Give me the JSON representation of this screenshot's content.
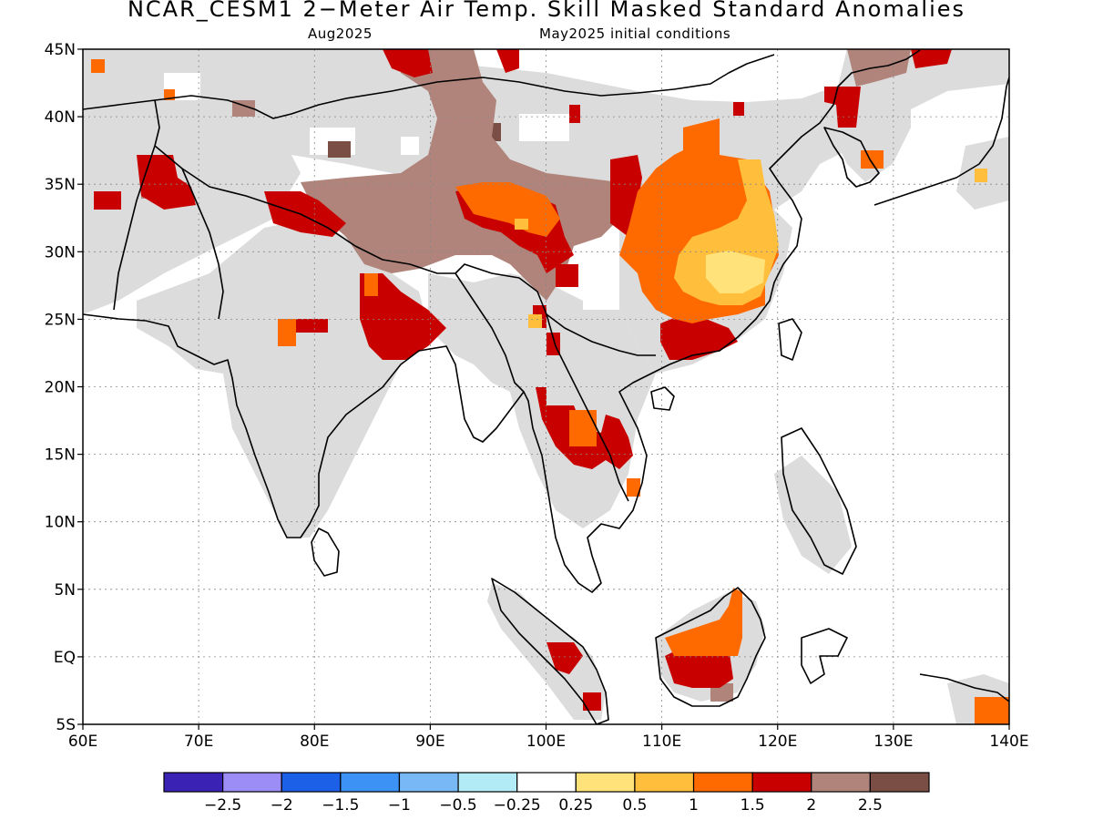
{
  "title": "NCAR_CESM1 2−Meter Air Temp. Skill Masked Standard Anomalies",
  "subtitle_left": "Aug2025",
  "subtitle_right": "May2025 initial conditions",
  "map": {
    "lon_range": [
      60,
      140
    ],
    "lat_range": [
      -5,
      45
    ],
    "lon_ticks": [
      {
        "value": 60,
        "label": "60E"
      },
      {
        "value": 70,
        "label": "70E"
      },
      {
        "value": 80,
        "label": "80E"
      },
      {
        "value": 90,
        "label": "90E"
      },
      {
        "value": 100,
        "label": "100E"
      },
      {
        "value": 110,
        "label": "110E"
      },
      {
        "value": 120,
        "label": "120E"
      },
      {
        "value": 130,
        "label": "130E"
      },
      {
        "value": 140,
        "label": "140E"
      }
    ],
    "lat_ticks": [
      {
        "value": 45,
        "label": "45N"
      },
      {
        "value": 40,
        "label": "40N"
      },
      {
        "value": 35,
        "label": "35N"
      },
      {
        "value": 30,
        "label": "30N"
      },
      {
        "value": 25,
        "label": "25N"
      },
      {
        "value": 20,
        "label": "20N"
      },
      {
        "value": 15,
        "label": "15N"
      },
      {
        "value": 10,
        "label": "10N"
      },
      {
        "value": 5,
        "label": "5N"
      },
      {
        "value": 0,
        "label": "EQ"
      },
      {
        "value": -5,
        "label": "5S"
      }
    ],
    "grid": "dotted",
    "colors": {
      "masked": "#dcdcdc",
      "anom_1": "#ffd966",
      "anom_2": "#ffbf3c",
      "anom_3": "#ff6a00",
      "anom_4": "#c80000",
      "anom_5": "#b0847a",
      "anom_6": "#7a4e44",
      "coast": "#000000"
    }
  },
  "colorbar": {
    "colors": [
      "#3a22b5",
      "#9c8cf5",
      "#1c60e8",
      "#3c92f5",
      "#78b8f7",
      "#b2ebf5",
      "#ffffff",
      "#ffe27a",
      "#ffbf3c",
      "#ff6a00",
      "#c80000",
      "#b0847a",
      "#7a4e44"
    ],
    "labels": [
      "−2.5",
      "−2",
      "−1.5",
      "−1",
      "−0.5",
      "−0.25",
      "0.25",
      "0.5",
      "1",
      "1.5",
      "2",
      "2.5"
    ]
  }
}
